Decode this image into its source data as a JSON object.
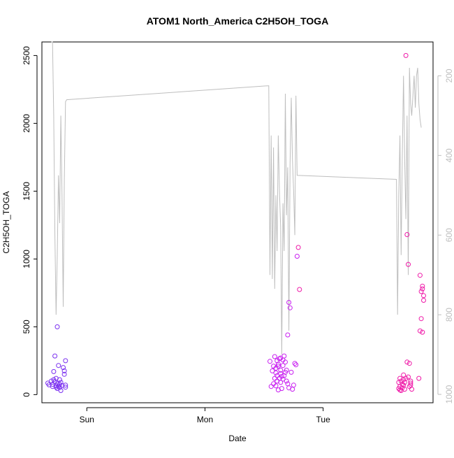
{
  "chart_data": {
    "type": "scatter",
    "title": "ATOM1 North_America C2H5OH_TOGA",
    "xlabel": "Date",
    "ylabel": "C2H5OH_TOGA",
    "x_ticks": [
      {
        "x": 1.0,
        "label": "Sun"
      },
      {
        "x": 2.0,
        "label": "Mon"
      },
      {
        "x": 3.0,
        "label": "Tue"
      }
    ],
    "xlim": [
      0.62,
      3.93
    ],
    "ylim": [
      -60,
      2600
    ],
    "y_ticks": [
      0,
      500,
      1000,
      1500,
      2000,
      2500
    ],
    "y2_ticks": [
      200,
      400,
      600,
      800,
      1000
    ],
    "y2lim": [
      1021,
      115
    ],
    "grid": false,
    "colors": {
      "axis": "#000000",
      "secondary_axis": "#bebebe",
      "line": "#bebebe",
      "points_early": "#7a2ff0",
      "points_mid": "#c81ef0",
      "points_late": "#ef1aa8"
    },
    "series": [
      {
        "kind": "points",
        "color_key": "points_early",
        "x": [
          0.67,
          0.68,
          0.7,
          0.71,
          0.71,
          0.72,
          0.72,
          0.73,
          0.73,
          0.74,
          0.74,
          0.74,
          0.75,
          0.75,
          0.75,
          0.76,
          0.76,
          0.77,
          0.77,
          0.77,
          0.78,
          0.78,
          0.79,
          0.8,
          0.81,
          0.81,
          0.82,
          0.82,
          0.82
        ],
        "y": [
          85,
          72,
          100,
          75,
          60,
          170,
          110,
          285,
          95,
          65,
          120,
          55,
          500,
          80,
          45,
          215,
          62,
          110,
          75,
          52,
          90,
          30,
          68,
          200,
          150,
          175,
          70,
          250,
          55
        ]
      },
      {
        "kind": "points",
        "color_key": "points_mid",
        "x": [
          2.55,
          2.56,
          2.57,
          2.58,
          2.58,
          2.59,
          2.59,
          2.6,
          2.6,
          2.61,
          2.61,
          2.61,
          2.62,
          2.62,
          2.63,
          2.63,
          2.64,
          2.64,
          2.64,
          2.65,
          2.65,
          2.66,
          2.66,
          2.67,
          2.67,
          2.68,
          2.68,
          2.69,
          2.69,
          2.7,
          2.7,
          2.71,
          2.71,
          2.72,
          2.73,
          2.74,
          2.75,
          2.76,
          2.77,
          2.78,
          2.6,
          2.62,
          2.64,
          2.66
        ],
        "y": [
          245,
          60,
          175,
          80,
          210,
          120,
          280,
          65,
          195,
          100,
          250,
          140,
          210,
          35,
          265,
          120,
          180,
          90,
          270,
          135,
          45,
          215,
          115,
          140,
          285,
          240,
          165,
          100,
          180,
          440,
          80,
          680,
          50,
          640,
          165,
          40,
          70,
          230,
          220,
          1020,
          160,
          225,
          155,
          255
        ]
      },
      {
        "kind": "points",
        "color_key": "points_late",
        "x": [
          2.79,
          2.8,
          3.64,
          3.64,
          3.65,
          3.65,
          3.65,
          3.66,
          3.66,
          3.67,
          3.67,
          3.68,
          3.68,
          3.68,
          3.69,
          3.69,
          3.7,
          3.7,
          3.71,
          3.71,
          3.72,
          3.72,
          3.73,
          3.73,
          3.74,
          3.74,
          3.74,
          3.75,
          3.81,
          3.82,
          3.82,
          3.83,
          3.83,
          3.84,
          3.84,
          3.84,
          3.85,
          3.85
        ],
        "y": [
          1085,
          775,
          90,
          45,
          120,
          35,
          60,
          30,
          100,
          75,
          50,
          145,
          110,
          70,
          40,
          90,
          2500,
          120,
          1180,
          240,
          960,
          130,
          60,
          230,
          85,
          100,
          70,
          40,
          120,
          470,
          880,
          560,
          760,
          460,
          800,
          780,
          695,
          730
        ]
      },
      {
        "kind": "line",
        "axis": "y2",
        "color_key": "line",
        "x": [
          0.7,
          0.71,
          0.72,
          0.73,
          0.74,
          0.75,
          0.76,
          0.77,
          0.78,
          0.79,
          0.8,
          0.81,
          0.82,
          0.83,
          2.54,
          2.55,
          2.56,
          2.57,
          2.58,
          2.59,
          2.6,
          2.61,
          2.62,
          2.63,
          2.64,
          2.65,
          2.66,
          2.67,
          2.68,
          2.69,
          2.7,
          2.71,
          2.72,
          2.73,
          2.74,
          2.75,
          2.76,
          2.77,
          2.78,
          3.62,
          3.63,
          3.64,
          3.65,
          3.66,
          3.67,
          3.68,
          3.69,
          3.7,
          3.71,
          3.72,
          3.73,
          3.74,
          3.75,
          3.76,
          3.77,
          3.78,
          3.79,
          3.8,
          3.81,
          3.82,
          3.83
        ],
        "y": [
          80,
          95,
          300,
          600,
          800,
          650,
          450,
          570,
          300,
          500,
          780,
          460,
          265,
          260,
          225,
          700,
          350,
          710,
          380,
          735,
          500,
          640,
          350,
          490,
          580,
          900,
          520,
          640,
          245,
          550,
          430,
          840,
          420,
          255,
          410,
          490,
          600,
          250,
          450,
          460,
          800,
          500,
          350,
          650,
          400,
          200,
          410,
          560,
          300,
          700,
          180,
          270,
          300,
          250,
          200,
          280,
          200,
          180,
          270,
          310,
          330
        ],
        "note": "sampled line series"
      }
    ]
  }
}
